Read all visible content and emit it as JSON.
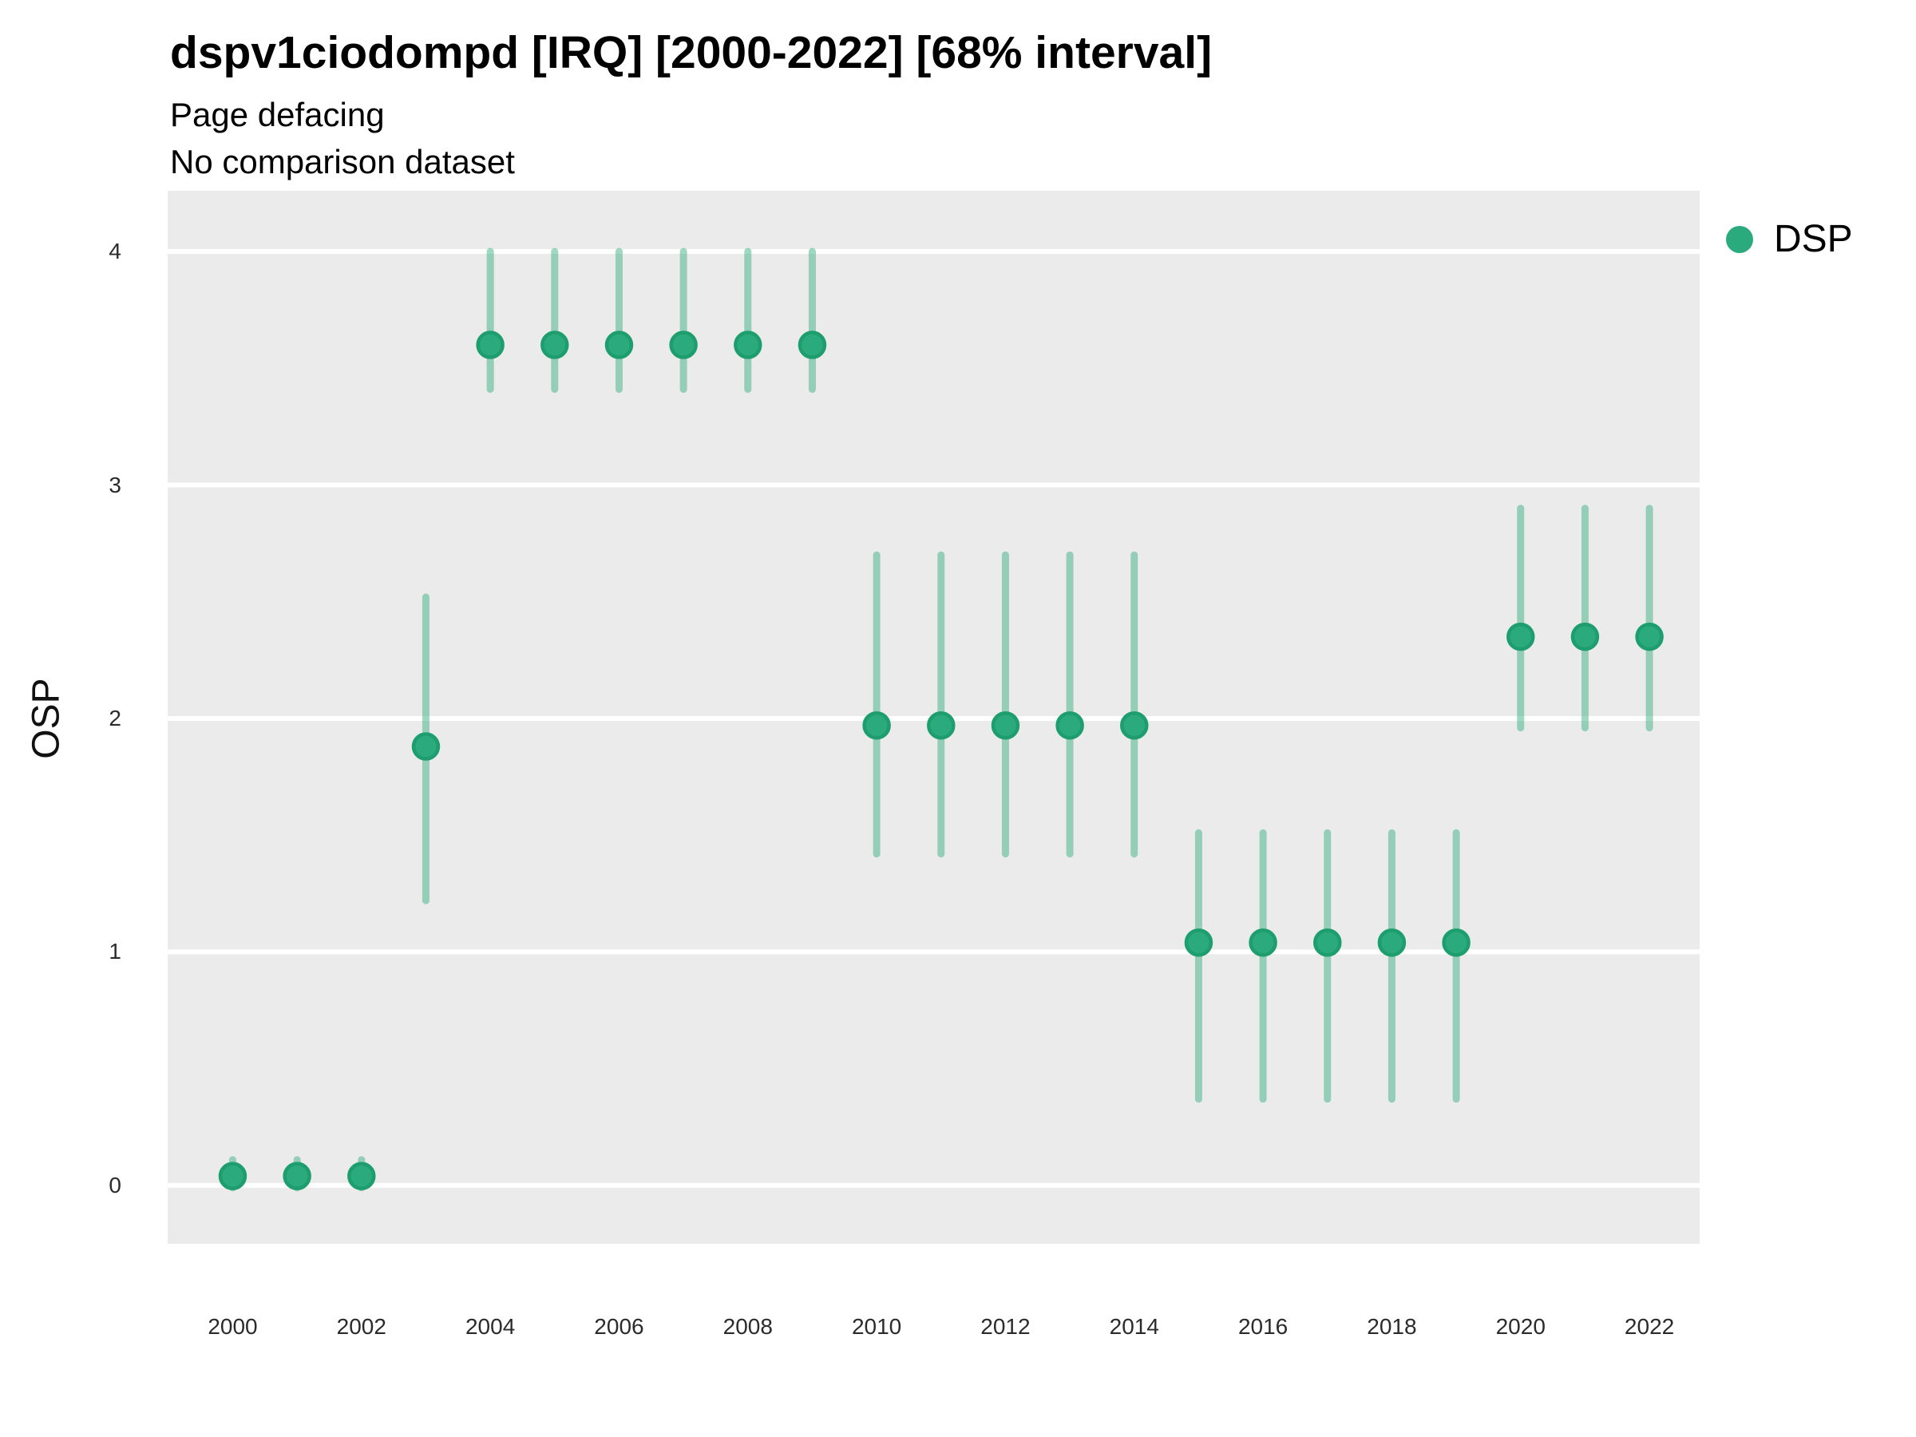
{
  "legend": {
    "position": "right",
    "items": [
      {
        "label": "DSP",
        "marker": "circle-icon",
        "color": "#2aaa7d"
      }
    ]
  },
  "colors": {
    "background": "#FFFFFF",
    "panel_background": "#EBEBEB",
    "gridline": "#FFFFFF",
    "point_fill": "#2aaa7d",
    "point_stroke": "#1e9e6f",
    "errorbar": "#2aaa7d",
    "tick_label": "#2b2b2b",
    "title_text": "#000000"
  },
  "chart_data": {
    "type": "scatter",
    "title": "dspv1ciodompd [IRQ] [2000-2022] [68% interval]",
    "subtitle1": "Page defacing",
    "subtitle2": "No comparison dataset",
    "interval": "68% interval",
    "xlabel": "",
    "ylabel": "OSP",
    "xlim": [
      1998.99,
      2022.78
    ],
    "ylim": [
      -0.25,
      4.26
    ],
    "x_ticks": [
      2000,
      2002,
      2004,
      2006,
      2008,
      2010,
      2012,
      2014,
      2016,
      2018,
      2020,
      2022
    ],
    "y_ticks": [
      0,
      1,
      2,
      3,
      4
    ],
    "grid": "horizontal-major-only",
    "legend_position": "right",
    "series": [
      {
        "name": "DSP",
        "points": [
          {
            "x": 2000,
            "y": 0.04,
            "lo": -0.01,
            "hi": 0.11
          },
          {
            "x": 2001,
            "y": 0.04,
            "lo": -0.01,
            "hi": 0.11
          },
          {
            "x": 2002,
            "y": 0.04,
            "lo": -0.01,
            "hi": 0.11
          },
          {
            "x": 2003,
            "y": 1.88,
            "lo": 1.22,
            "hi": 2.52
          },
          {
            "x": 2004,
            "y": 3.6,
            "lo": 3.41,
            "hi": 4.0
          },
          {
            "x": 2005,
            "y": 3.6,
            "lo": 3.41,
            "hi": 4.0
          },
          {
            "x": 2006,
            "y": 3.6,
            "lo": 3.41,
            "hi": 4.0
          },
          {
            "x": 2007,
            "y": 3.6,
            "lo": 3.41,
            "hi": 4.0
          },
          {
            "x": 2008,
            "y": 3.6,
            "lo": 3.41,
            "hi": 4.0
          },
          {
            "x": 2009,
            "y": 3.6,
            "lo": 3.41,
            "hi": 4.0
          },
          {
            "x": 2010,
            "y": 1.97,
            "lo": 1.42,
            "hi": 2.7
          },
          {
            "x": 2011,
            "y": 1.97,
            "lo": 1.42,
            "hi": 2.7
          },
          {
            "x": 2012,
            "y": 1.97,
            "lo": 1.42,
            "hi": 2.7
          },
          {
            "x": 2013,
            "y": 1.97,
            "lo": 1.42,
            "hi": 2.7
          },
          {
            "x": 2014,
            "y": 1.97,
            "lo": 1.42,
            "hi": 2.7
          },
          {
            "x": 2015,
            "y": 1.04,
            "lo": 0.37,
            "hi": 1.51
          },
          {
            "x": 2016,
            "y": 1.04,
            "lo": 0.37,
            "hi": 1.51
          },
          {
            "x": 2017,
            "y": 1.04,
            "lo": 0.37,
            "hi": 1.51
          },
          {
            "x": 2018,
            "y": 1.04,
            "lo": 0.37,
            "hi": 1.51
          },
          {
            "x": 2019,
            "y": 1.04,
            "lo": 0.37,
            "hi": 1.51
          },
          {
            "x": 2020,
            "y": 2.35,
            "lo": 1.96,
            "hi": 2.9
          },
          {
            "x": 2021,
            "y": 2.35,
            "lo": 1.96,
            "hi": 2.9
          },
          {
            "x": 2022,
            "y": 2.35,
            "lo": 1.96,
            "hi": 2.9
          }
        ]
      }
    ]
  }
}
